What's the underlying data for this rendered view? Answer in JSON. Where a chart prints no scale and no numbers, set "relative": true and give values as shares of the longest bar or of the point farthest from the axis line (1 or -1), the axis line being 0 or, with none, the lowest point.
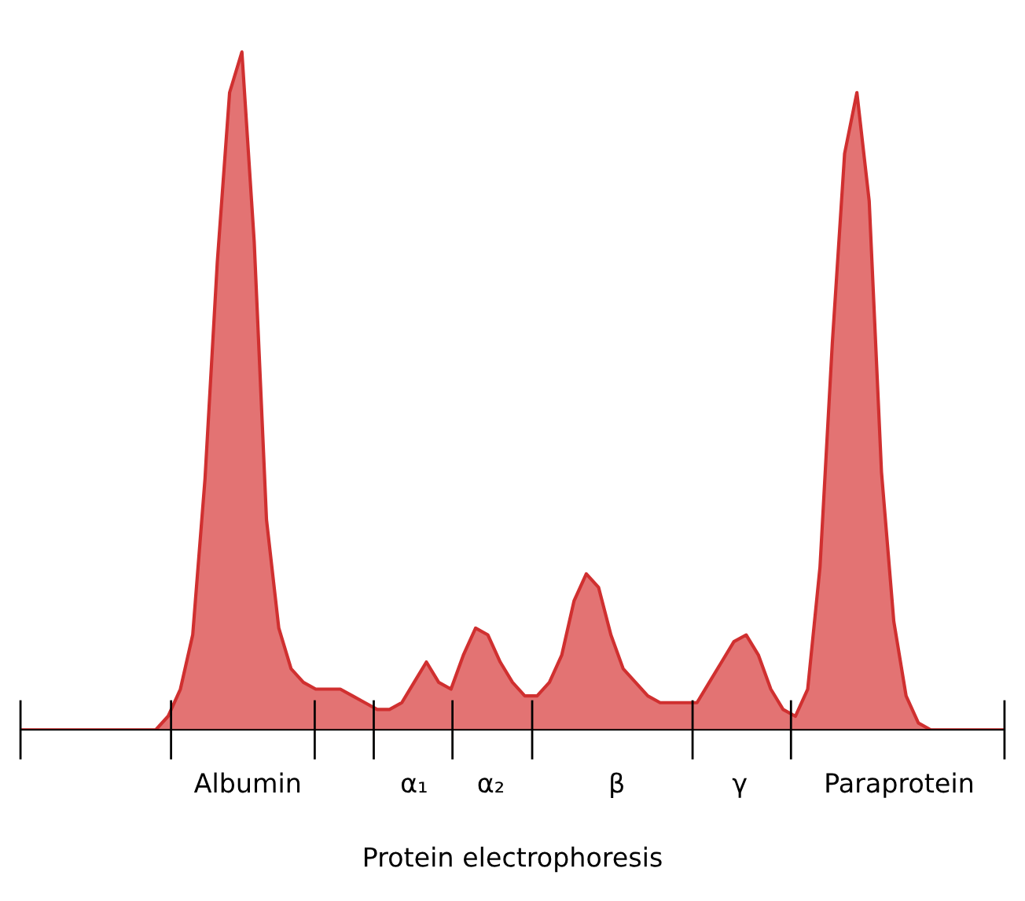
{
  "chart_data": {
    "type": "area",
    "relative": true,
    "xlabel": "Protein electrophoresis",
    "annotations": [
      "Albumin",
      "α₁",
      "α₂",
      "β",
      "γ",
      "Paraprotein"
    ],
    "color": "#e06464",
    "categories": [
      null,
      null,
      null,
      null,
      null,
      null,
      null,
      null,
      null,
      null,
      null,
      null,
      null,
      null,
      null,
      null,
      null,
      null,
      null,
      null,
      null,
      null,
      null,
      null,
      null,
      null,
      null,
      null,
      null,
      null,
      null,
      null,
      null,
      null,
      null,
      null,
      null,
      null,
      null,
      null,
      null,
      null,
      null,
      null,
      null,
      null,
      null,
      null,
      null,
      null,
      null,
      null,
      null,
      null,
      null,
      null,
      null,
      null,
      null,
      null,
      null,
      null,
      null,
      null,
      null,
      null,
      null,
      null,
      null,
      null,
      null,
      null,
      null,
      null,
      null,
      null,
      null,
      null,
      null,
      null,
      null
    ],
    "values": [
      0,
      0,
      0,
      0,
      0,
      0,
      0,
      0,
      0,
      0,
      0,
      0,
      0.02,
      0.06,
      0.14,
      0.37,
      0.69,
      0.94,
      1.0,
      0.72,
      0.31,
      0.15,
      0.09,
      0.07,
      0.06,
      0.06,
      0.06,
      0.05,
      0.04,
      0.03,
      0.03,
      0.04,
      0.07,
      0.1,
      0.07,
      0.06,
      0.11,
      0.15,
      0.14,
      0.1,
      0.07,
      0.05,
      0.05,
      0.07,
      0.11,
      0.19,
      0.23,
      0.21,
      0.14,
      0.09,
      0.07,
      0.05,
      0.04,
      0.04,
      0.04,
      0.04,
      0.07,
      0.1,
      0.13,
      0.14,
      0.11,
      0.06,
      0.03,
      0.02,
      0.06,
      0.24,
      0.57,
      0.85,
      0.94,
      0.78,
      0.38,
      0.16,
      0.05,
      0.01,
      0,
      0,
      0,
      0,
      0,
      0,
      0
    ]
  }
}
